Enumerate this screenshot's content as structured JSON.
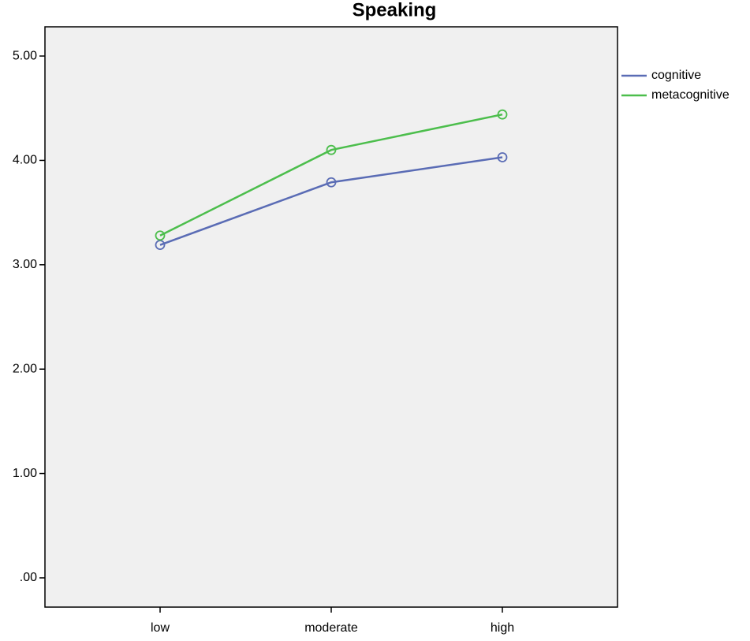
{
  "chart_data": {
    "type": "line",
    "title": "Speaking",
    "categories": [
      "low",
      "moderate",
      "high"
    ],
    "series": [
      {
        "name": "cognitive",
        "color": "#5a6cb5",
        "values": [
          3.19,
          3.79,
          4.03
        ]
      },
      {
        "name": "metacognitive",
        "color": "#4cbe4c",
        "values": [
          3.28,
          4.1,
          4.44
        ]
      }
    ],
    "ylim": [
      -0.28,
      5.28
    ],
    "yticks": [
      {
        "value": 0,
        "label": ".00"
      },
      {
        "value": 1,
        "label": "1.00"
      },
      {
        "value": 2,
        "label": "2.00"
      },
      {
        "value": 3,
        "label": "3.00"
      },
      {
        "value": 4,
        "label": "4.00"
      },
      {
        "value": 5,
        "label": "5.00"
      }
    ],
    "legend": "right"
  }
}
